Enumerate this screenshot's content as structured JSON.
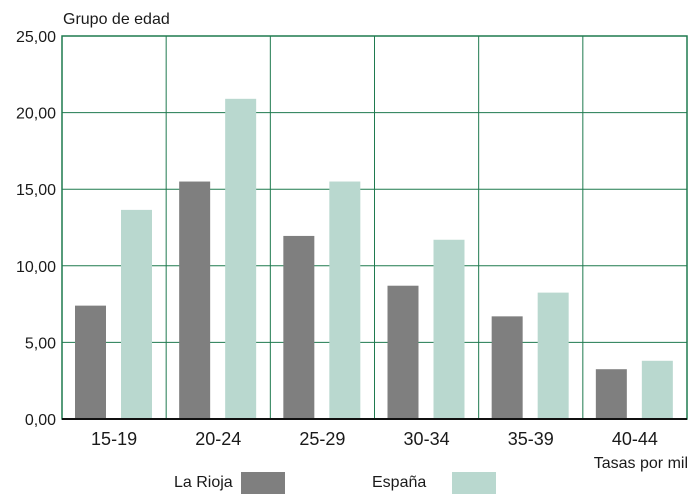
{
  "chart_data": {
    "type": "bar",
    "ylabel": "Grupo de edad",
    "xlabel": "Tasas por mil",
    "categories": [
      "15-19",
      "20-24",
      "25-29",
      "30-34",
      "35-39",
      "40-44"
    ],
    "series": [
      {
        "name": "La Rioja",
        "values": [
          7.4,
          15.5,
          11.95,
          8.7,
          6.7,
          3.25
        ],
        "color": "#7f7f7f"
      },
      {
        "name": "España",
        "values": [
          13.65,
          20.9,
          15.5,
          11.7,
          8.25,
          3.8
        ],
        "color": "#b9d8cf"
      }
    ],
    "yticks": [
      "0,00",
      "5,00",
      "10,00",
      "15,00",
      "20,00",
      "25,00"
    ],
    "ylim": [
      0,
      25
    ],
    "grid": true,
    "grid_color": "#1f7a4f",
    "legend_position": "bottom"
  }
}
